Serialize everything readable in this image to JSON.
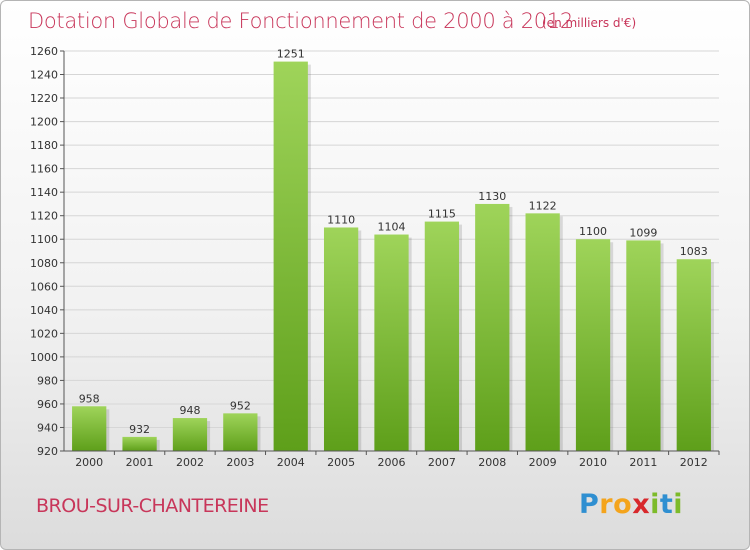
{
  "title": "Dotation Globale de Fonctionnement de 2000 à 2012",
  "unit_note": "(en milliers d'€)",
  "commune": "BROU-SUR-CHANTEREINE",
  "brand": {
    "letters": [
      "P",
      "r",
      "o",
      "x",
      "i",
      "t",
      "i"
    ],
    "colors": [
      "#2f8fd1",
      "#f4a41c",
      "#f4a41c",
      "#d8282c",
      "#7dbb2a",
      "#2f8fd1",
      "#7dbb2a"
    ]
  },
  "colors": {
    "bar_top": "#9fd45a",
    "bar_bottom": "#5e9f1a",
    "title": "#c8365a"
  },
  "chart_data": {
    "type": "bar",
    "categories": [
      "2000",
      "2001",
      "2002",
      "2003",
      "2004",
      "2005",
      "2006",
      "2007",
      "2008",
      "2009",
      "2010",
      "2011",
      "2012"
    ],
    "values": [
      958,
      932,
      948,
      952,
      1251,
      1110,
      1104,
      1115,
      1130,
      1122,
      1100,
      1099,
      1083
    ],
    "title": "Dotation Globale de Fonctionnement de 2000 à 2012",
    "xlabel": "",
    "ylabel": "",
    "ylim": [
      920,
      1260
    ],
    "yticks": [
      920,
      940,
      960,
      980,
      1000,
      1020,
      1040,
      1060,
      1080,
      1100,
      1120,
      1140,
      1160,
      1180,
      1200,
      1220,
      1240,
      1260
    ],
    "grid": true
  }
}
